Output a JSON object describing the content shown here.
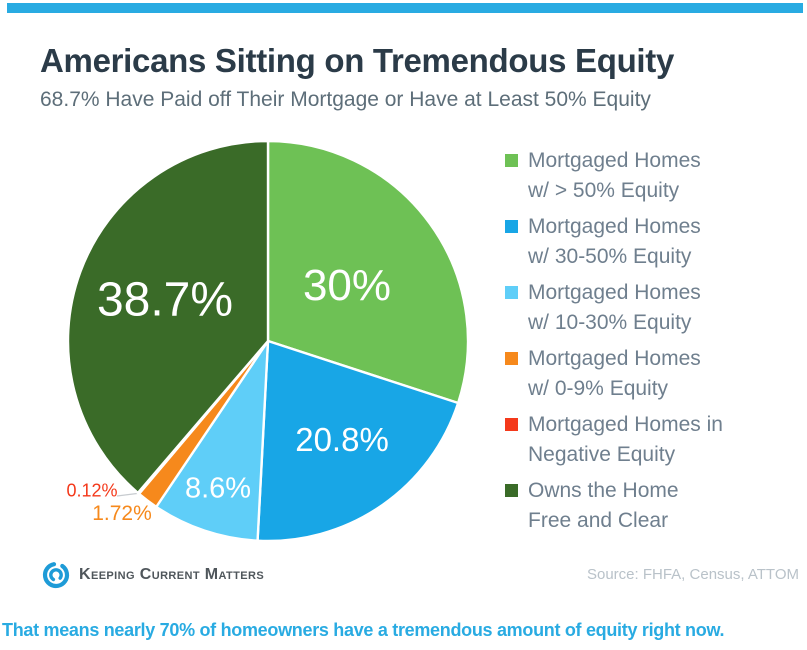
{
  "colors": {
    "accent_bar": "#29ABE2",
    "title_text": "#2B3B48",
    "subtitle_text": "#5D6E79",
    "legend_text": "#6F7F8E",
    "logo_text": "#4F565B",
    "source_text": "#B9C2C9",
    "takeaway_text": "#29ABE2",
    "slice_label_inside": "#FFFFFF"
  },
  "header": {
    "title": "Americans Sitting on Tremendous Equity",
    "subtitle": "68.7% Have Paid off Their Mortgage or Have at Least 50% Equity"
  },
  "chart_data": {
    "type": "pie",
    "title": "Americans Sitting on Tremendous Equity",
    "subtitle": "68.7% Have Paid off Their Mortgage or Have at Least 50% Equity",
    "start_angle_deg": 0,
    "direction": "clockwise",
    "legend_position": "right",
    "slices": [
      {
        "name": "Mortgaged Homes w/ > 50% Equity",
        "value": 30,
        "label": "30%",
        "color": "#6EC155",
        "label_inside": true,
        "legend_line1": "Mortgaged Homes",
        "legend_line2": "w/ > 50% Equity"
      },
      {
        "name": "Mortgaged Homes w/ 30-50% Equity",
        "value": 20.8,
        "label": "20.8%",
        "color": "#18A6E6",
        "label_inside": true,
        "legend_line1": "Mortgaged Homes",
        "legend_line2": "w/ 30-50% Equity"
      },
      {
        "name": "Mortgaged Homes w/ 10-30% Equity",
        "value": 8.6,
        "label": "8.6%",
        "color": "#5FCEF8",
        "label_inside": true,
        "legend_line1": "Mortgaged Homes",
        "legend_line2": "w/ 10-30% Equity"
      },
      {
        "name": "Mortgaged Homes w/ 0-9% Equity",
        "value": 1.72,
        "label": "1.72%",
        "color": "#F6891C",
        "label_inside": false,
        "legend_line1": "Mortgaged Homes",
        "legend_line2": "w/ 0-9% Equity"
      },
      {
        "name": "Mortgaged Homes in Negative Equity",
        "value": 0.12,
        "label": "0.12%",
        "color": "#F4391B",
        "label_inside": false,
        "legend_line1": "Mortgaged Homes in",
        "legend_line2": "Negative Equity"
      },
      {
        "name": "Owns the Home Free and Clear",
        "value": 38.7,
        "label": "38.7%",
        "color": "#3A6B28",
        "label_inside": true,
        "legend_line1": "Owns the Home",
        "legend_line2": "Free and Clear"
      }
    ]
  },
  "footer": {
    "logo_text": "Keeping Current Matters",
    "source": "Source: FHFA, Census, ATTOM"
  },
  "takeaway": {
    "text": "That means nearly 70% of homeowners have a tremendous amount of equity right now."
  }
}
